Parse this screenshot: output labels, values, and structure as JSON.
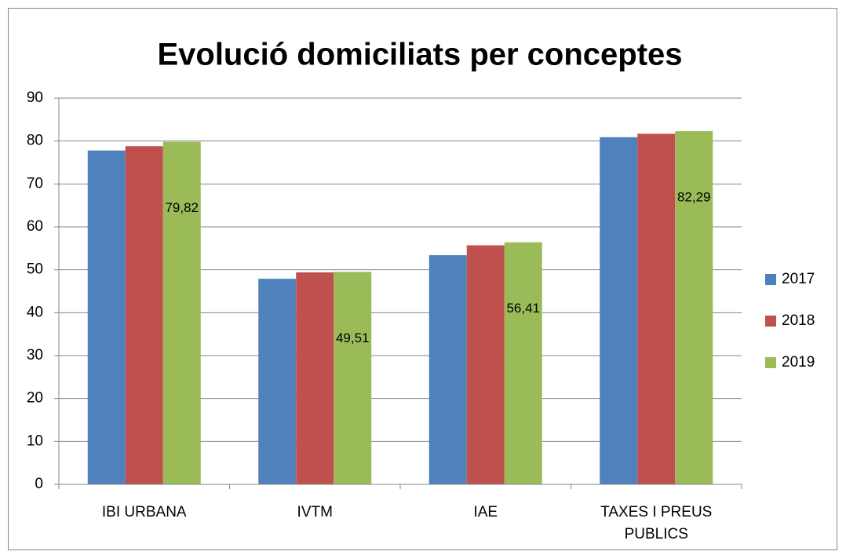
{
  "chart_data": {
    "type": "bar",
    "title": "Evolució domiciliats per conceptes",
    "categories": [
      "IBI URBANA",
      "IVTM",
      "IAE",
      "TAXES I PREUS PUBLICS"
    ],
    "series": [
      {
        "name": "2017",
        "color": "#4f81bd",
        "values": [
          77.8,
          47.9,
          53.4,
          80.9
        ]
      },
      {
        "name": "2018",
        "color": "#c0504d",
        "values": [
          78.8,
          49.4,
          55.7,
          81.7
        ]
      },
      {
        "name": "2019",
        "color": "#9bbb59",
        "values": [
          79.82,
          49.51,
          56.41,
          82.29
        ],
        "value_labels": [
          "79,82",
          "49,51",
          "56,41",
          "82,29"
        ]
      }
    ],
    "ylim": [
      0,
      90
    ],
    "yticks": [
      0,
      10,
      20,
      30,
      40,
      50,
      60,
      70,
      80,
      90
    ],
    "grid": true,
    "legend": "right"
  }
}
